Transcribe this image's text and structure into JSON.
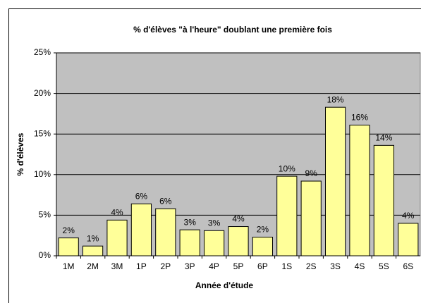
{
  "chart_data": {
    "type": "bar",
    "title": "% d'élèves \"à l'heure\" doublant une première fois",
    "x_label": "Année d'étude",
    "y_label": "% d'élèves",
    "categories": [
      "1M",
      "2M",
      "3M",
      "1P",
      "2P",
      "3P",
      "4P",
      "5P",
      "6P",
      "1S",
      "2S",
      "3S",
      "4S",
      "5S",
      "6S"
    ],
    "values": [
      2.2,
      1.2,
      4.4,
      6.4,
      5.8,
      3.2,
      3.1,
      3.6,
      2.3,
      9.8,
      9.2,
      18.3,
      16.1,
      13.6,
      4.0
    ],
    "value_labels": [
      "2%",
      "1%",
      "4%",
      "6%",
      "6%",
      "3%",
      "3%",
      "4%",
      "2%",
      "10%",
      "9%",
      "18%",
      "16%",
      "14%",
      "4%"
    ],
    "color": "#ffff99",
    "ylim": [
      0,
      25
    ],
    "yticks": [
      {
        "value": 0,
        "label": "0%"
      },
      {
        "value": 5,
        "label": "5%"
      },
      {
        "value": 10,
        "label": "10%"
      },
      {
        "value": 15,
        "label": "15%"
      },
      {
        "value": 20,
        "label": "20%"
      },
      {
        "value": 25,
        "label": "25%"
      }
    ],
    "grid": true
  }
}
